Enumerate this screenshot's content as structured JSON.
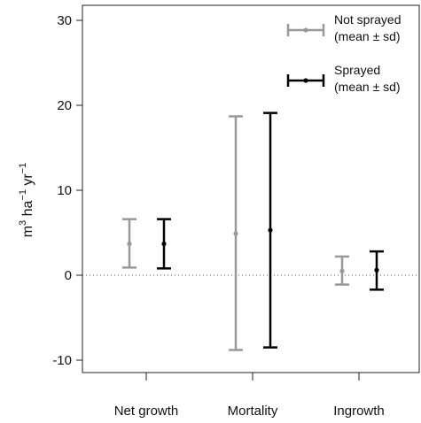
{
  "chart_data": {
    "type": "errorbar",
    "title": "",
    "xlabel": "",
    "ylabel": {
      "base": "m",
      "sup1": "3",
      "mid1": " ha",
      "sup2": "−1",
      "mid2": " yr",
      "sup3": "−1"
    },
    "categories": [
      "Net growth",
      "Mortality",
      "Ingrowth"
    ],
    "ylim": [
      -11.5,
      31
    ],
    "yticks": [
      -10,
      0,
      10,
      20,
      30
    ],
    "ytick_labels": [
      "-10",
      "0",
      "10",
      "20",
      "30"
    ],
    "reference_line": {
      "y": 0,
      "style": "dotted"
    },
    "grid": false,
    "legend_position": "top-right",
    "series": [
      {
        "name": "Not sprayed\n(mean ± sd)",
        "legend_line1": "Not sprayed",
        "legend_line2": "(mean ± sd)",
        "color": "#999999",
        "mean": [
          3.7,
          4.9,
          0.5
        ],
        "lower": [
          0.9,
          -8.8,
          -1.1
        ],
        "upper": [
          6.6,
          18.7,
          2.2
        ]
      },
      {
        "name": "Sprayed\n(mean ± sd)",
        "legend_line1": "Sprayed",
        "legend_line2": "(mean ± sd)",
        "color": "#000000",
        "mean": [
          3.7,
          5.3,
          0.6
        ],
        "lower": [
          0.8,
          -8.5,
          -1.7
        ],
        "upper": [
          6.6,
          19.1,
          2.8
        ]
      }
    ]
  }
}
